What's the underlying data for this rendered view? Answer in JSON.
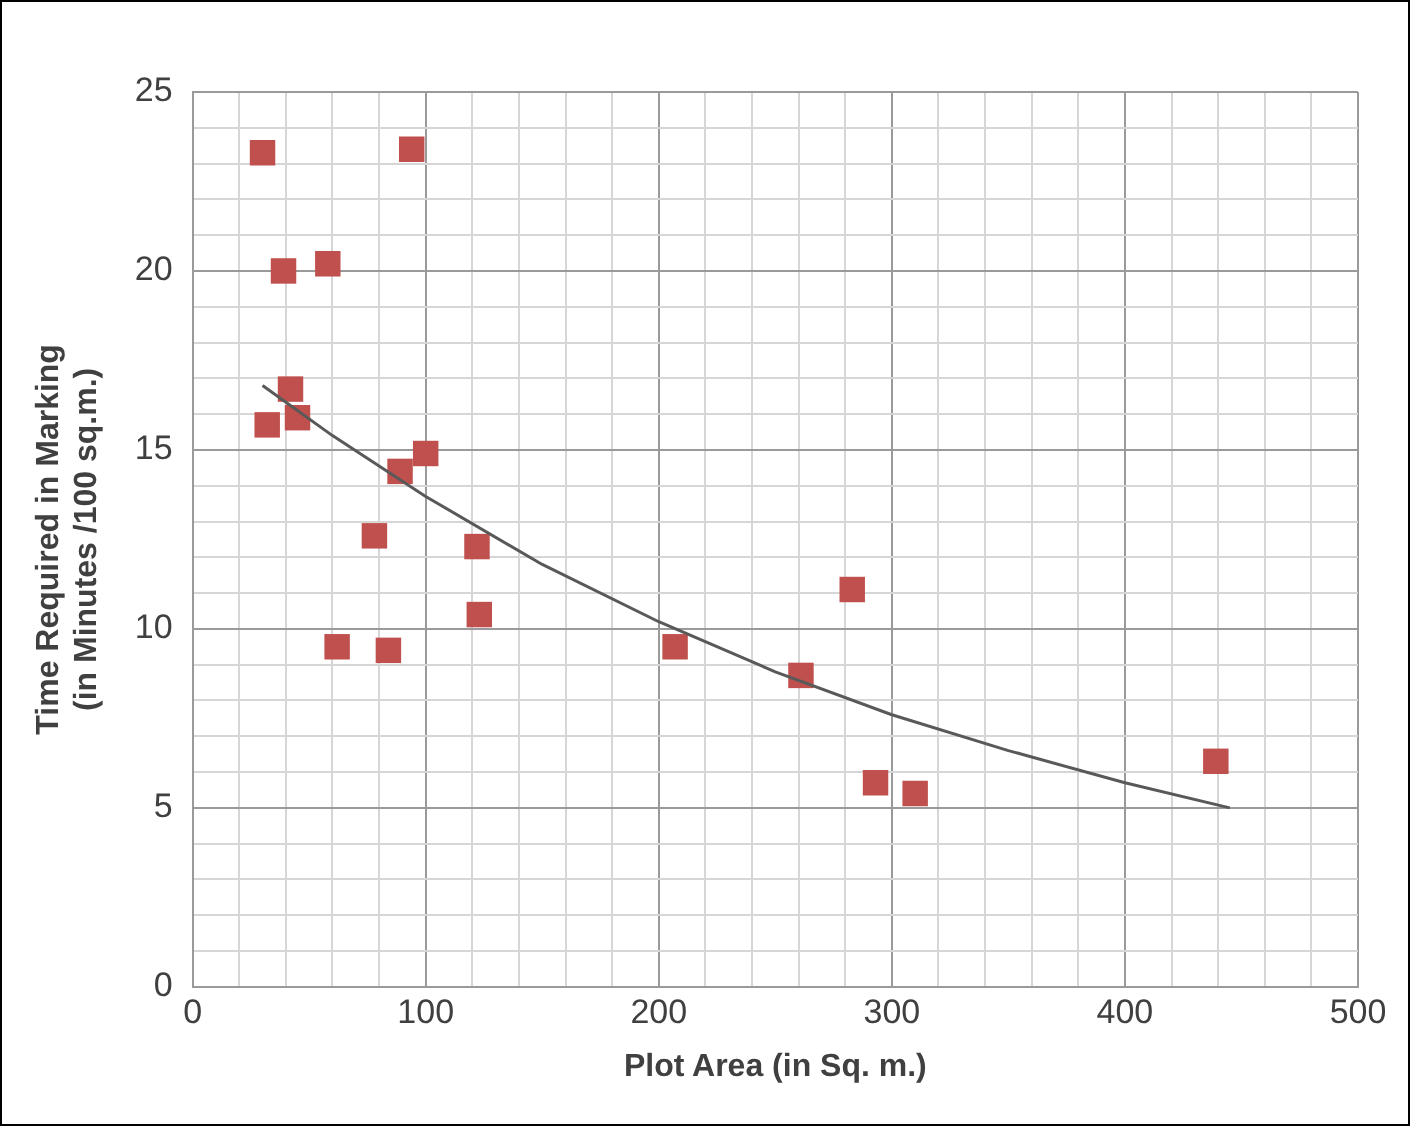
{
  "chart_data": {
    "type": "scatter",
    "xlabel": "Plot Area (in Sq. m.)",
    "ylabel": "Time Required in Marking\n(in Minutes /100 sq.m.)",
    "xlim": [
      0,
      500
    ],
    "ylim": [
      0,
      25
    ],
    "xticks": [
      0,
      {
        "value": 20,
        "label": null
      },
      {
        "value": 40,
        "label": null
      },
      {
        "value": 60,
        "label": null
      },
      {
        "value": 80,
        "label": null
      },
      100,
      {
        "value": 120,
        "label": null
      },
      {
        "value": 140,
        "label": null
      },
      {
        "value": 160,
        "label": null
      },
      {
        "value": 180,
        "label": null
      },
      200,
      {
        "value": 220,
        "label": null
      },
      {
        "value": 240,
        "label": null
      },
      {
        "value": 260,
        "label": null
      },
      {
        "value": 280,
        "label": null
      },
      300,
      {
        "value": 320,
        "label": null
      },
      {
        "value": 340,
        "label": null
      },
      {
        "value": 360,
        "label": null
      },
      {
        "value": 380,
        "label": null
      },
      400,
      {
        "value": 420,
        "label": null
      },
      {
        "value": 440,
        "label": null
      },
      {
        "value": 460,
        "label": null
      },
      {
        "value": 480,
        "label": null
      },
      500
    ],
    "yticks": [
      0,
      {
        "value": 1,
        "label": null
      },
      {
        "value": 2,
        "label": null
      },
      {
        "value": 3,
        "label": null
      },
      {
        "value": 4,
        "label": null
      },
      5,
      {
        "value": 6,
        "label": null
      },
      {
        "value": 7,
        "label": null
      },
      {
        "value": 8,
        "label": null
      },
      {
        "value": 9,
        "label": null
      },
      10,
      {
        "value": 11,
        "label": null
      },
      {
        "value": 12,
        "label": null
      },
      {
        "value": 13,
        "label": null
      },
      {
        "value": 14,
        "label": null
      },
      15,
      {
        "value": 16,
        "label": null
      },
      {
        "value": 17,
        "label": null
      },
      {
        "value": 18,
        "label": null
      },
      {
        "value": 19,
        "label": null
      },
      20,
      {
        "value": 21,
        "label": null
      },
      {
        "value": 22,
        "label": null
      },
      {
        "value": 23,
        "label": null
      },
      {
        "value": 24,
        "label": null
      },
      25
    ],
    "grid": true,
    "legend": false,
    "series": [
      {
        "type": "line",
        "color": "#595959",
        "marker": "none",
        "line_style": "solid",
        "x": [
          30,
          60,
          100,
          150,
          200,
          250,
          300,
          350,
          400,
          445
        ],
        "values": [
          16.8,
          15.4,
          13.7,
          11.8,
          10.2,
          8.8,
          7.6,
          6.6,
          5.7,
          5.0
        ]
      },
      {
        "color": "#c0504d",
        "marker": "square",
        "x": [
          30,
          94,
          39,
          58,
          42,
          45,
          32,
          89,
          100,
          78,
          122,
          123,
          62,
          84,
          207,
          283,
          261,
          293,
          310,
          439
        ],
        "values": [
          23.3,
          23.4,
          20,
          20.2,
          16.7,
          15.9,
          15.7,
          14.4,
          14.9,
          12.6,
          12.3,
          10.4,
          9.5,
          9.4,
          9.5,
          11.1,
          8.7,
          5.7,
          5.4,
          6.3
        ]
      }
    ]
  }
}
